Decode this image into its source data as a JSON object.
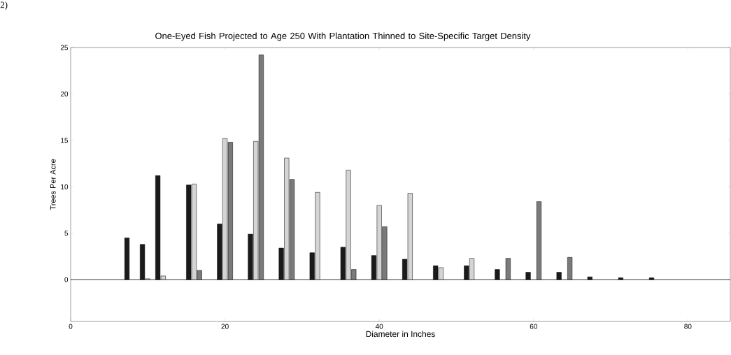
{
  "chart_data": {
    "type": "bar",
    "title": "One-Eyed Fish Projected to Age 250 With Plantation Thinned to Site-Specific Target Density",
    "xlabel": "Diameter in Inches",
    "ylabel": "Trees Per Acre",
    "annotations": [
      "2)"
    ],
    "x": [
      8,
      10,
      12,
      16,
      20,
      24,
      28,
      32,
      36,
      40,
      44,
      48,
      52,
      56,
      60,
      64,
      68,
      72,
      76
    ],
    "series": [
      {
        "color": "#1a1a1a",
        "values": [
          4.5,
          3.8,
          11.2,
          10.2,
          6.0,
          4.9,
          3.4,
          2.9,
          3.5,
          2.6,
          2.2,
          1.5,
          1.5,
          1.1,
          0.8,
          0.8,
          0.3,
          0.2,
          0.2
        ]
      },
      {
        "color": "#d4d4d4",
        "values": [
          null,
          0.1,
          0.4,
          10.3,
          15.2,
          14.9,
          13.1,
          9.4,
          11.8,
          8.0,
          9.3,
          1.3,
          2.3,
          null,
          null,
          null,
          null,
          null,
          null
        ]
      },
      {
        "color": "#7a7a7a",
        "values": [
          null,
          null,
          null,
          1.0,
          14.8,
          24.2,
          10.8,
          null,
          1.1,
          5.7,
          null,
          null,
          null,
          2.3,
          8.4,
          2.4,
          null,
          null,
          null
        ]
      }
    ],
    "xlim": [
      0,
      85.5
    ],
    "ylim": [
      -4.5,
      25
    ],
    "xticks": [
      0,
      20,
      40,
      60,
      80
    ],
    "yticks": [
      0,
      5,
      10,
      15,
      20,
      25
    ],
    "ref_lines": [
      {
        "axis": "y",
        "value": 0,
        "color": "#000000"
      }
    ]
  }
}
